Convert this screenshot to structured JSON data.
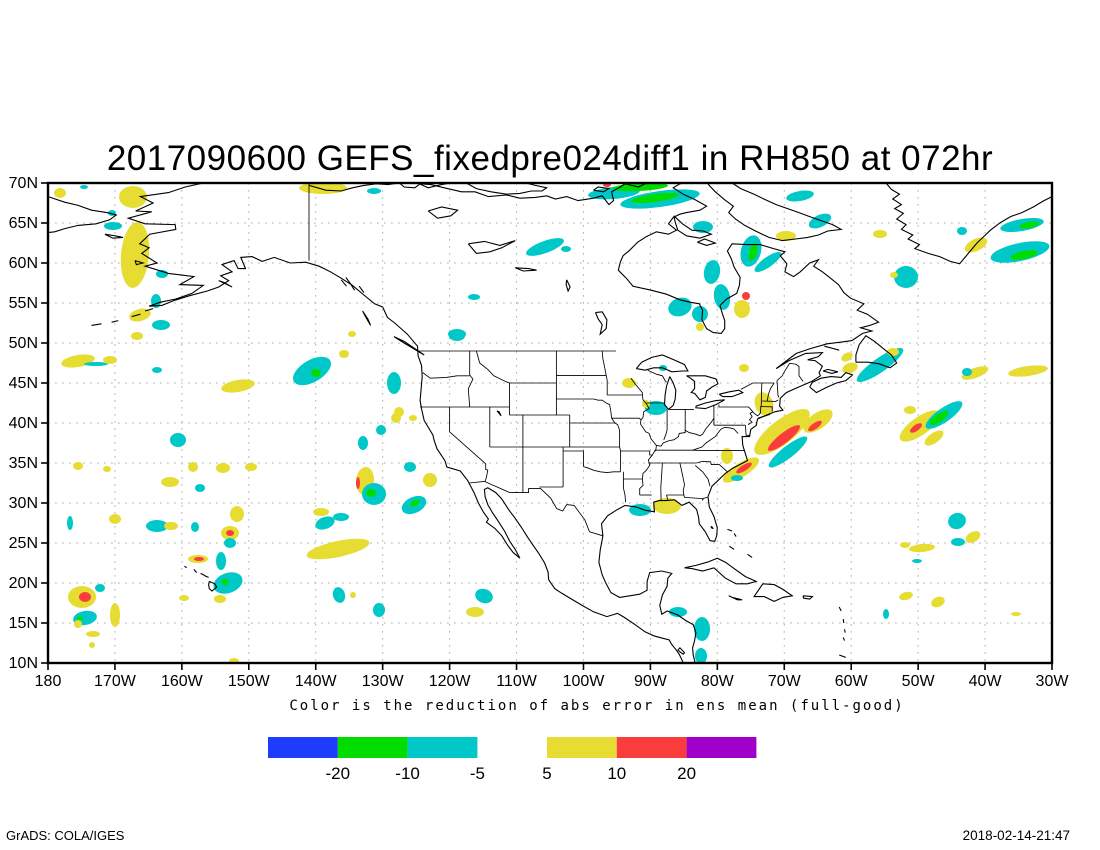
{
  "title": "2017090600 GEFS_fixedpre024diff1 in RH850 at 072hr",
  "axes": {
    "lat_labels": [
      "70N",
      "65N",
      "60N",
      "55N",
      "50N",
      "45N",
      "40N",
      "35N",
      "30N",
      "25N",
      "20N",
      "15N",
      "10N"
    ],
    "lon_labels": [
      "180",
      "170W",
      "160W",
      "150W",
      "140W",
      "130W",
      "120W",
      "110W",
      "100W",
      "90W",
      "80W",
      "70W",
      "60W",
      "50W",
      "40W",
      "30W"
    ]
  },
  "colorbar": {
    "caption": "Color is the reduction of abs error in ens mean (full-good)",
    "negative": {
      "colors": [
        "#1e3cff",
        "#00dc00",
        "#00c8c8"
      ],
      "labels": [
        "-20",
        "-10",
        "-5"
      ]
    },
    "positive": {
      "colors": [
        "#e6dc32",
        "#fa3c3c",
        "#a000c8"
      ],
      "labels": [
        "5",
        "10",
        "20"
      ]
    }
  },
  "palette": {
    "yellow": "#e6dc32",
    "cyan": "#00c8c8",
    "green": "#00dc00",
    "red": "#fa3c3c"
  },
  "footer": {
    "left": "GrADS: COLA/IGES",
    "right": "2018-02-14-21:47"
  },
  "chart_data": {
    "type": "heatmap",
    "title": "2017090600 GEFS_fixedpre024diff1 in RH850 at 072hr",
    "caption": "Color is the reduction of abs error in ens mean (full-good)",
    "x_axis": {
      "ticks": [
        "180",
        "170W",
        "160W",
        "150W",
        "140W",
        "130W",
        "120W",
        "110W",
        "100W",
        "90W",
        "80W",
        "70W",
        "60W",
        "50W",
        "40W",
        "30W"
      ],
      "lon_range_deg": [
        -180,
        -30
      ]
    },
    "y_axis": {
      "ticks": [
        "70N",
        "65N",
        "60N",
        "55N",
        "50N",
        "45N",
        "40N",
        "35N",
        "30N",
        "25N",
        "20N",
        "15N",
        "10N"
      ],
      "lat_range_deg": [
        10,
        70
      ]
    },
    "shading_levels": [
      -20,
      -10,
      -5,
      5,
      10,
      20
    ],
    "shading_colors": [
      "#1e3cff",
      "#00dc00",
      "#00c8c8",
      "#ffffff",
      "#e6dc32",
      "#fa3c3c",
      "#a000c8"
    ],
    "grid": true,
    "legend_position": "bottom"
  }
}
